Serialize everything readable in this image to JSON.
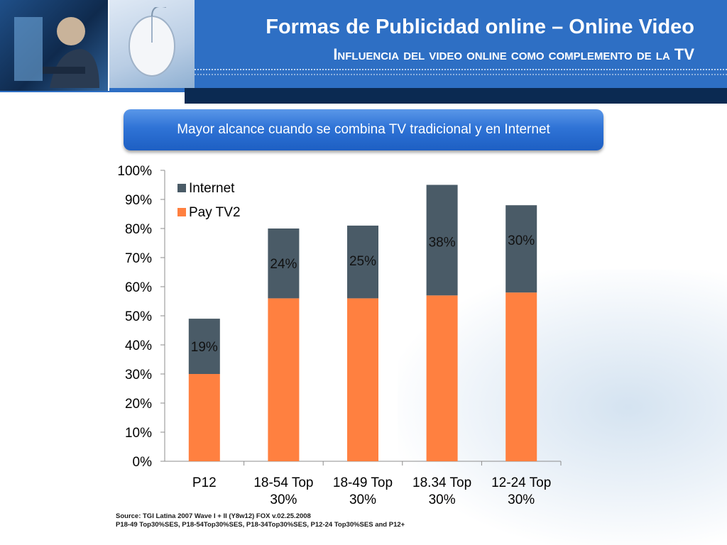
{
  "header": {
    "title": "Formas de Publicidad online – Online Video",
    "subtitle": "Influencia del video online como complemento de la TV"
  },
  "banner": {
    "text": "Mayor alcance cuando se combina TV tradicional y en Internet"
  },
  "colors": {
    "header": "#2e6fc4",
    "internet": "#4a5b67",
    "paytv": "#ff8040"
  },
  "icons": [
    "person-at-computer-photo",
    "computer-mouse-photo",
    "business-people-watermark"
  ],
  "chart_data": {
    "type": "bar",
    "stacked": true,
    "categories": [
      "P12",
      "18-54 Top 30%",
      "18-49 Top 30%",
      "18.34 Top 30%",
      "12-24 Top 30%"
    ],
    "series": [
      {
        "name": "Pay TV2",
        "values": [
          30,
          56,
          56,
          57,
          58
        ]
      },
      {
        "name": "Internet",
        "values": [
          19,
          24,
          25,
          38,
          30
        ]
      }
    ],
    "data_labels": [
      "19%",
      "24%",
      "25%",
      "38%",
      "30%"
    ],
    "y_ticks": [
      "0%",
      "10%",
      "20%",
      "30%",
      "40%",
      "50%",
      "60%",
      "70%",
      "80%",
      "90%",
      "100%"
    ],
    "ylim": [
      0,
      100
    ],
    "legend": [
      "Internet",
      "Pay TV2"
    ],
    "legend_position": "top-left"
  },
  "source": {
    "line1": "Source: TGI Latina 2007 Wave I + II (Y8w12) FOX v.02.25.2008",
    "line2": "P18-49 Top30%SES, P18-54Top30%SES, P18-34Top30%SES, P12-24 Top30%SES and P12+"
  }
}
